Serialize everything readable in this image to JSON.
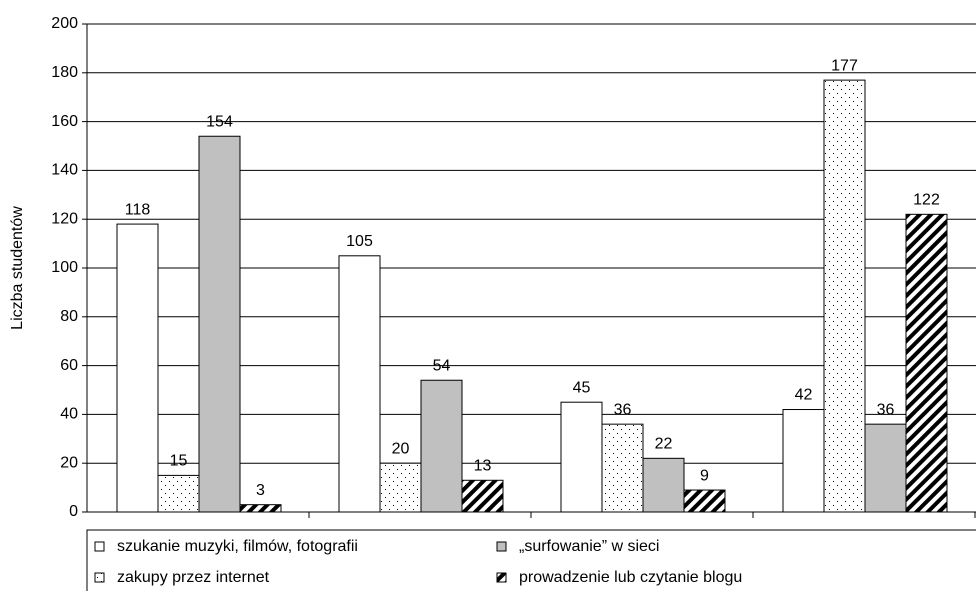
{
  "chart_data": {
    "type": "bar",
    "y_label": "Liczba studentów",
    "categories": [
      null,
      null,
      null,
      null
    ],
    "series": [
      {
        "name": "szukanie muzyki, filmów, fotografii",
        "color": "#ffffff",
        "values": [
          118,
          105,
          45,
          42
        ]
      },
      {
        "name": "zakupy przez internet",
        "color": "#ffffff",
        "pattern": "dots",
        "values": [
          15,
          20,
          36,
          177
        ]
      },
      {
        "name": "„surfowanie” w sieci",
        "color": "#c0c0c0",
        "values": [
          154,
          54,
          22,
          36
        ]
      },
      {
        "name": "prowadzenie lub czytanie blogu",
        "color": "#000000",
        "pattern": "hatch",
        "values": [
          3,
          13,
          9,
          122
        ]
      }
    ],
    "ylim": [
      0,
      200
    ],
    "yticks": [
      0,
      20,
      40,
      60,
      80,
      100,
      120,
      140,
      160,
      180,
      200
    ],
    "grid": true
  }
}
